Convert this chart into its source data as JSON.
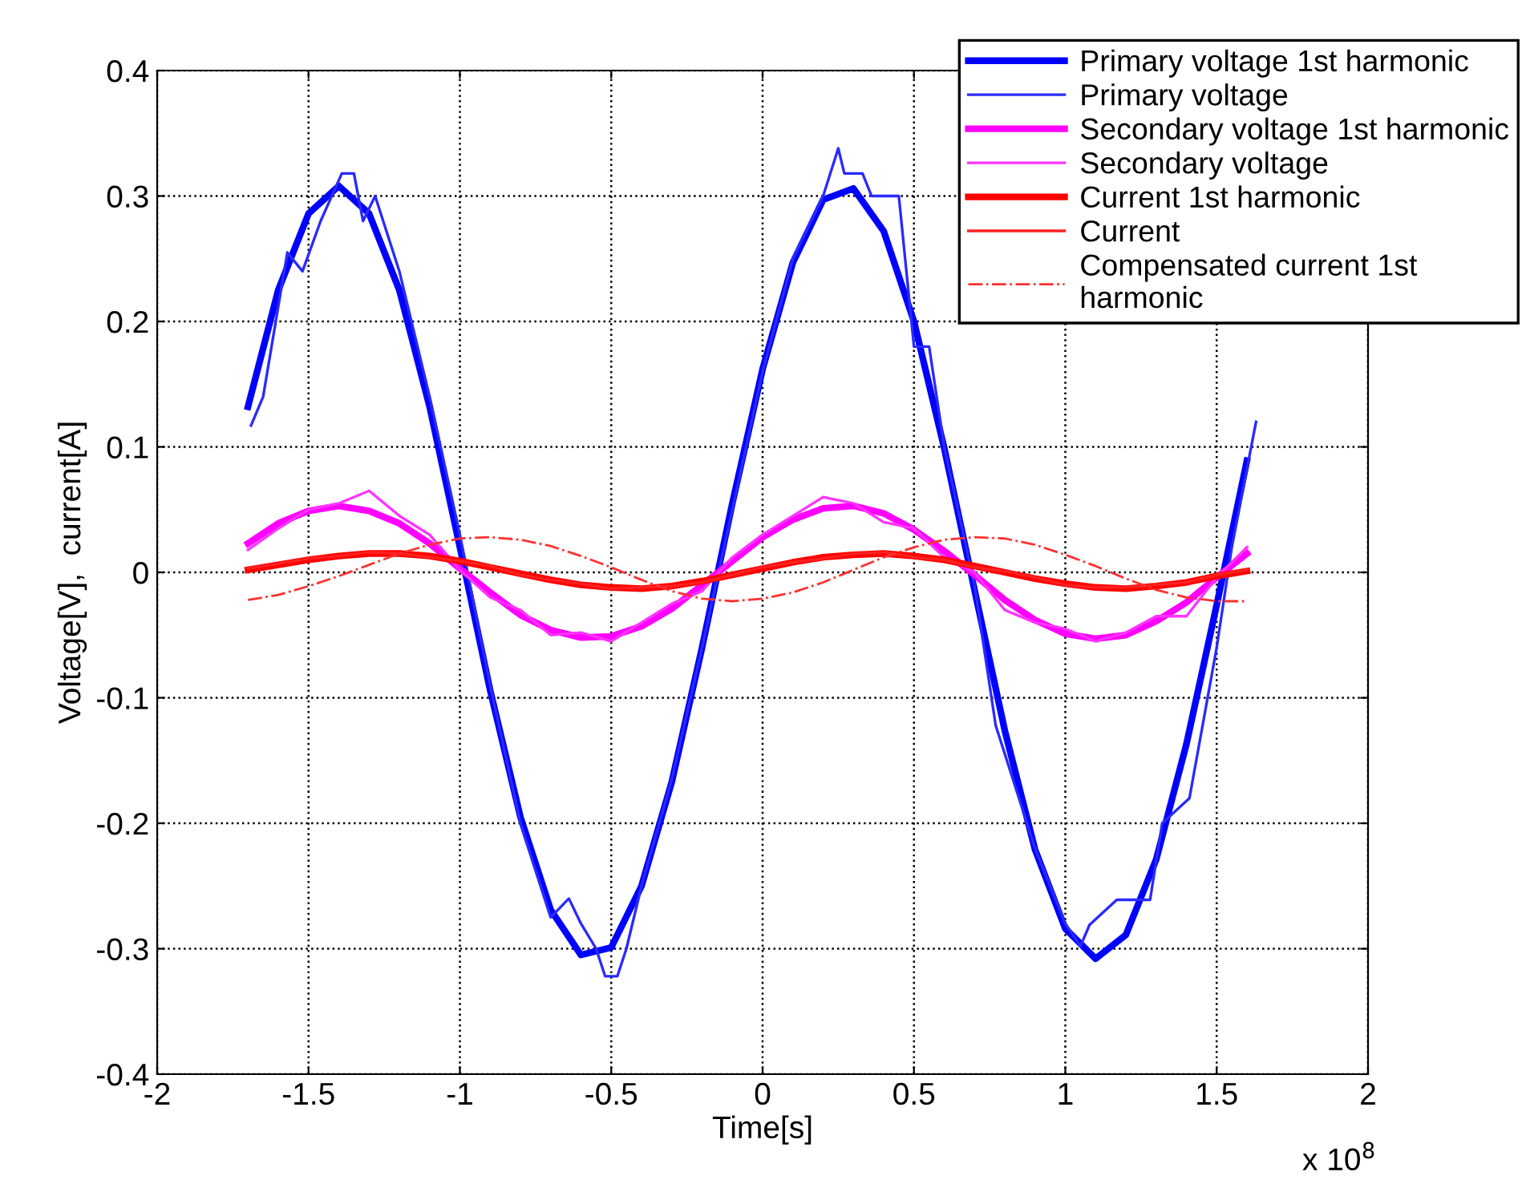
{
  "chart_data": {
    "type": "line",
    "xlabel": "Time[s]",
    "ylabel": "Voltage[V],  current[A]",
    "annotations": [
      "x 10$^{8}$"
    ],
    "xlim": [
      -2,
      2
    ],
    "xticks": [
      -2,
      -1.5,
      -1,
      -0.5,
      0,
      0.5,
      1,
      1.5,
      2
    ],
    "ylim": [
      -0.4,
      0.4
    ],
    "yticks": [
      -0.4,
      -0.3,
      -0.2,
      -0.1,
      0,
      0.1,
      0.2,
      0.3,
      0.4
    ],
    "grid": true,
    "legend": "top right",
    "marker": "none",
    "x": [
      -1.7,
      -1.6,
      -1.5,
      -1.4,
      -1.3,
      -1.2,
      -1.1,
      -1.0,
      -0.9,
      -0.8,
      -0.7,
      -0.6,
      -0.5,
      -0.4,
      -0.3,
      -0.2,
      -0.1,
      0,
      0.1,
      0.2,
      0.3,
      0.4,
      0.5,
      0.6,
      0.7,
      0.8,
      0.9,
      1.0,
      1.1,
      1.2,
      1.3,
      1.4,
      1.5,
      1.6
    ],
    "series": [
      {
        "name": "Primary voltage 1st harmonic",
        "color": "#0000ff",
        "line_style": "solid",
        "values": [
          0.132,
          0.225,
          0.286,
          0.308,
          0.286,
          0.225,
          0.132,
          0.02,
          -0.094,
          -0.195,
          -0.269,
          -0.305,
          -0.299,
          -0.25,
          -0.167,
          -0.06,
          0.055,
          0.162,
          0.247,
          0.297,
          0.306,
          0.272,
          0.2,
          0.099,
          -0.014,
          -0.126,
          -0.221,
          -0.284,
          -0.308,
          -0.289,
          -0.229,
          -0.137,
          -0.026,
          0.089
        ]
      },
      {
        "name": "Primary voltage",
        "color": "#2a2aff",
        "line_style": "solid",
        "x": [
          -1.69,
          -1.65,
          -1.57,
          -1.52,
          -1.46,
          -1.39,
          -1.35,
          -1.32,
          -1.28,
          -1.2,
          -1.1,
          -1.0,
          -0.9,
          -0.8,
          -0.7,
          -0.64,
          -0.6,
          -0.55,
          -0.52,
          -0.48,
          -0.45,
          -0.4,
          -0.3,
          -0.2,
          -0.1,
          0,
          0.1,
          0.2,
          0.25,
          0.27,
          0.33,
          0.36,
          0.45,
          0.5,
          0.55,
          0.6,
          0.7,
          0.77,
          0.9,
          1.0,
          1.05,
          1.08,
          1.17,
          1.28,
          1.32,
          1.41,
          1.5,
          1.55,
          1.63
        ],
        "values": [
          0.117,
          0.14,
          0.255,
          0.24,
          0.28,
          0.318,
          0.318,
          0.28,
          0.3,
          0.24,
          0.14,
          0.03,
          -0.09,
          -0.2,
          -0.275,
          -0.26,
          -0.28,
          -0.3,
          -0.322,
          -0.322,
          -0.3,
          -0.25,
          -0.165,
          -0.06,
          0.05,
          0.16,
          0.25,
          0.3,
          0.338,
          0.318,
          0.318,
          0.3,
          0.3,
          0.18,
          0.18,
          0.1,
          -0.01,
          -0.122,
          -0.22,
          -0.28,
          -0.298,
          -0.281,
          -0.261,
          -0.261,
          -0.2,
          -0.18,
          -0.06,
          0.02,
          0.12
        ]
      },
      {
        "name": "Secondary voltage 1st harmonic",
        "color": "#ff00ff",
        "line_style": "solid",
        "values": [
          0.023,
          0.039,
          0.049,
          0.053,
          0.049,
          0.039,
          0.023,
          0.003,
          -0.016,
          -0.034,
          -0.046,
          -0.052,
          -0.051,
          -0.043,
          -0.029,
          -0.01,
          0.009,
          0.028,
          0.042,
          0.051,
          0.053,
          0.047,
          0.034,
          0.017,
          -0.002,
          -0.022,
          -0.038,
          -0.049,
          -0.053,
          -0.05,
          -0.039,
          -0.024,
          -0.004,
          0.015
        ]
      },
      {
        "name": "Secondary voltage",
        "color": "#ff33ff",
        "line_style": "solid",
        "values": [
          0.018,
          0.035,
          0.05,
          0.055,
          0.065,
          0.045,
          0.03,
          0.002,
          -0.02,
          -0.03,
          -0.05,
          -0.048,
          -0.055,
          -0.04,
          -0.025,
          -0.015,
          0.012,
          0.03,
          0.045,
          0.06,
          0.055,
          0.04,
          0.035,
          0.012,
          0.0,
          -0.03,
          -0.04,
          -0.045,
          -0.055,
          -0.048,
          -0.035,
          -0.035,
          -0.004,
          0.02
        ]
      },
      {
        "name": "Current 1st harmonic",
        "color": "#ff0000",
        "line_style": "solid",
        "values": [
          0.002,
          0.006,
          0.01,
          0.013,
          0.015,
          0.015,
          0.013,
          0.009,
          0.004,
          -0.001,
          -0.006,
          -0.01,
          -0.012,
          -0.013,
          -0.011,
          -0.007,
          -0.002,
          0.003,
          0.008,
          0.012,
          0.014,
          0.015,
          0.013,
          0.01,
          0.005,
          0.0,
          -0.005,
          -0.009,
          -0.012,
          -0.013,
          -0.011,
          -0.008,
          -0.003,
          0.001
        ]
      },
      {
        "name": "Current",
        "color": "#ff2020",
        "line_style": "solid",
        "values": [
          0.003,
          0.007,
          0.011,
          0.013,
          0.016,
          0.015,
          0.012,
          0.009,
          0.005,
          -0.002,
          -0.006,
          -0.009,
          -0.013,
          -0.012,
          -0.011,
          -0.008,
          -0.002,
          0.004,
          0.008,
          0.011,
          0.015,
          0.016,
          0.012,
          0.01,
          0.004,
          0.001,
          -0.004,
          -0.01,
          -0.012,
          -0.012,
          -0.01,
          -0.008,
          -0.002,
          0.002
        ]
      },
      {
        "name": "Compensated current 1st\nharmonic",
        "color": "#ff3030",
        "line_style": "dashdot",
        "values": [
          -0.022,
          -0.018,
          -0.011,
          -0.003,
          0.006,
          0.015,
          0.022,
          0.027,
          0.028,
          0.026,
          0.021,
          0.013,
          0.004,
          -0.006,
          -0.015,
          -0.021,
          -0.023,
          -0.021,
          -0.016,
          -0.008,
          0.002,
          0.012,
          0.02,
          0.026,
          0.028,
          0.027,
          0.022,
          0.014,
          0.005,
          -0.005,
          -0.014,
          -0.02,
          -0.023,
          -0.023
        ]
      }
    ]
  }
}
